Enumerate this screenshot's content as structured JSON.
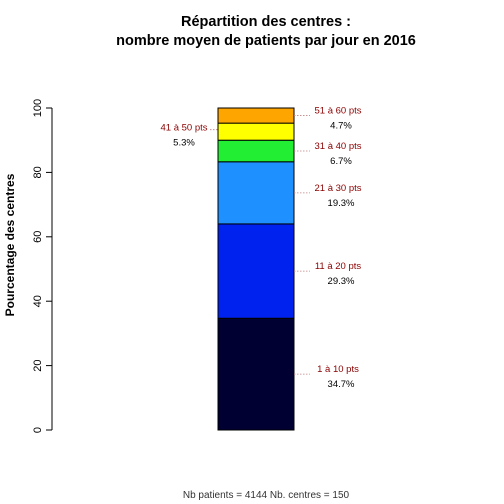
{
  "chart_data": {
    "type": "bar",
    "stacked": true,
    "title": [
      "Répartition des centres :",
      "nombre moyen de patients par jour en 2016"
    ],
    "ylabel": "Pourcentage des centres",
    "ylim": [
      0,
      100
    ],
    "yticks": [
      "0",
      "20",
      "40",
      "60",
      "80",
      "100"
    ],
    "segments": [
      {
        "label": "1 à 10 pts",
        "pct_label": "34.7%",
        "value": 34.7,
        "color": "#000033",
        "side": "right"
      },
      {
        "label": "11 à 20 pts",
        "pct_label": "29.3%",
        "value": 29.3,
        "color": "#0022ee",
        "side": "right"
      },
      {
        "label": "21 à 30 pts",
        "pct_label": "19.3%",
        "value": 19.3,
        "color": "#1e90ff",
        "side": "right"
      },
      {
        "label": "31 à 40 pts",
        "pct_label": "6.7%",
        "value": 6.7,
        "color": "#22ee33",
        "side": "right"
      },
      {
        "label": "41 à 50 pts",
        "pct_label": "5.3%",
        "value": 5.3,
        "color": "#ffff00",
        "side": "left"
      },
      {
        "label": "51 à 60 pts",
        "pct_label": "4.7%",
        "value": 4.7,
        "color": "#ffa500",
        "side": "right"
      }
    ],
    "footer": "Nb patients =  4144    Nb. centres =  150",
    "label_color": "#8b0000"
  }
}
